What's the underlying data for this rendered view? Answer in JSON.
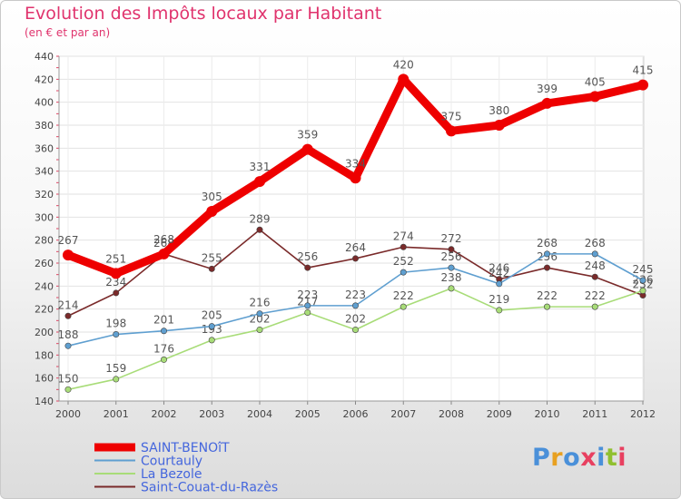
{
  "chart_data": {
    "type": "line",
    "title": "Evolution des Impôts locaux par Habitant",
    "subtitle": "(en € et par an)",
    "x": [
      "2000",
      "2001",
      "2002",
      "2003",
      "2004",
      "2005",
      "2006",
      "2007",
      "2008",
      "2009",
      "2010",
      "2011",
      "2012"
    ],
    "ylim": [
      140,
      440
    ],
    "yticks": [
      140,
      160,
      180,
      200,
      220,
      240,
      260,
      280,
      300,
      320,
      340,
      360,
      380,
      400,
      420,
      440
    ],
    "grid": true,
    "legend_position": "bottom-left",
    "series": [
      {
        "name": "SAINT-BENOîT",
        "color": "#ee0000",
        "values": [
          267,
          251,
          268,
          305,
          331,
          359,
          334,
          420,
          375,
          380,
          399,
          405,
          415
        ]
      },
      {
        "name": "Courtauly",
        "color": "#5f9fd0",
        "values": [
          188,
          198,
          201,
          205,
          216,
          223,
          223,
          252,
          256,
          242,
          268,
          268,
          245
        ]
      },
      {
        "name": "La Bezole",
        "color": "#a8dc78",
        "values": [
          150,
          159,
          176,
          193,
          202,
          217,
          202,
          222,
          238,
          219,
          222,
          222,
          236
        ]
      },
      {
        "name": "Saint-Couat-du-Razès",
        "color": "#7a2a2a",
        "values": [
          214,
          234,
          268,
          255,
          289,
          256,
          264,
          274,
          272,
          246,
          256,
          248,
          232
        ]
      }
    ],
    "data_labels": {
      "SAINT-BENOîT": [
        "267",
        "251",
        "268",
        "305",
        "331",
        "359",
        "334",
        "420",
        "375",
        "380",
        "399",
        "405",
        "415"
      ],
      "Courtauly": [
        "188",
        "198",
        "201",
        "205",
        "216",
        "223",
        "223",
        "252",
        "256",
        "242",
        "268",
        "268",
        "245"
      ],
      "La Bezole": [
        "150",
        "159",
        "176",
        "193",
        "202",
        "217",
        "202",
        "222",
        "238",
        "219",
        "222",
        "222",
        "236"
      ],
      "Saint-Couat-du-Razès": [
        "214",
        "234",
        "268",
        "255",
        "289",
        "256",
        "264",
        "274",
        "272",
        "246",
        "256",
        "248",
        "232"
      ]
    }
  },
  "brand": {
    "logo_text": "Proxiti"
  }
}
